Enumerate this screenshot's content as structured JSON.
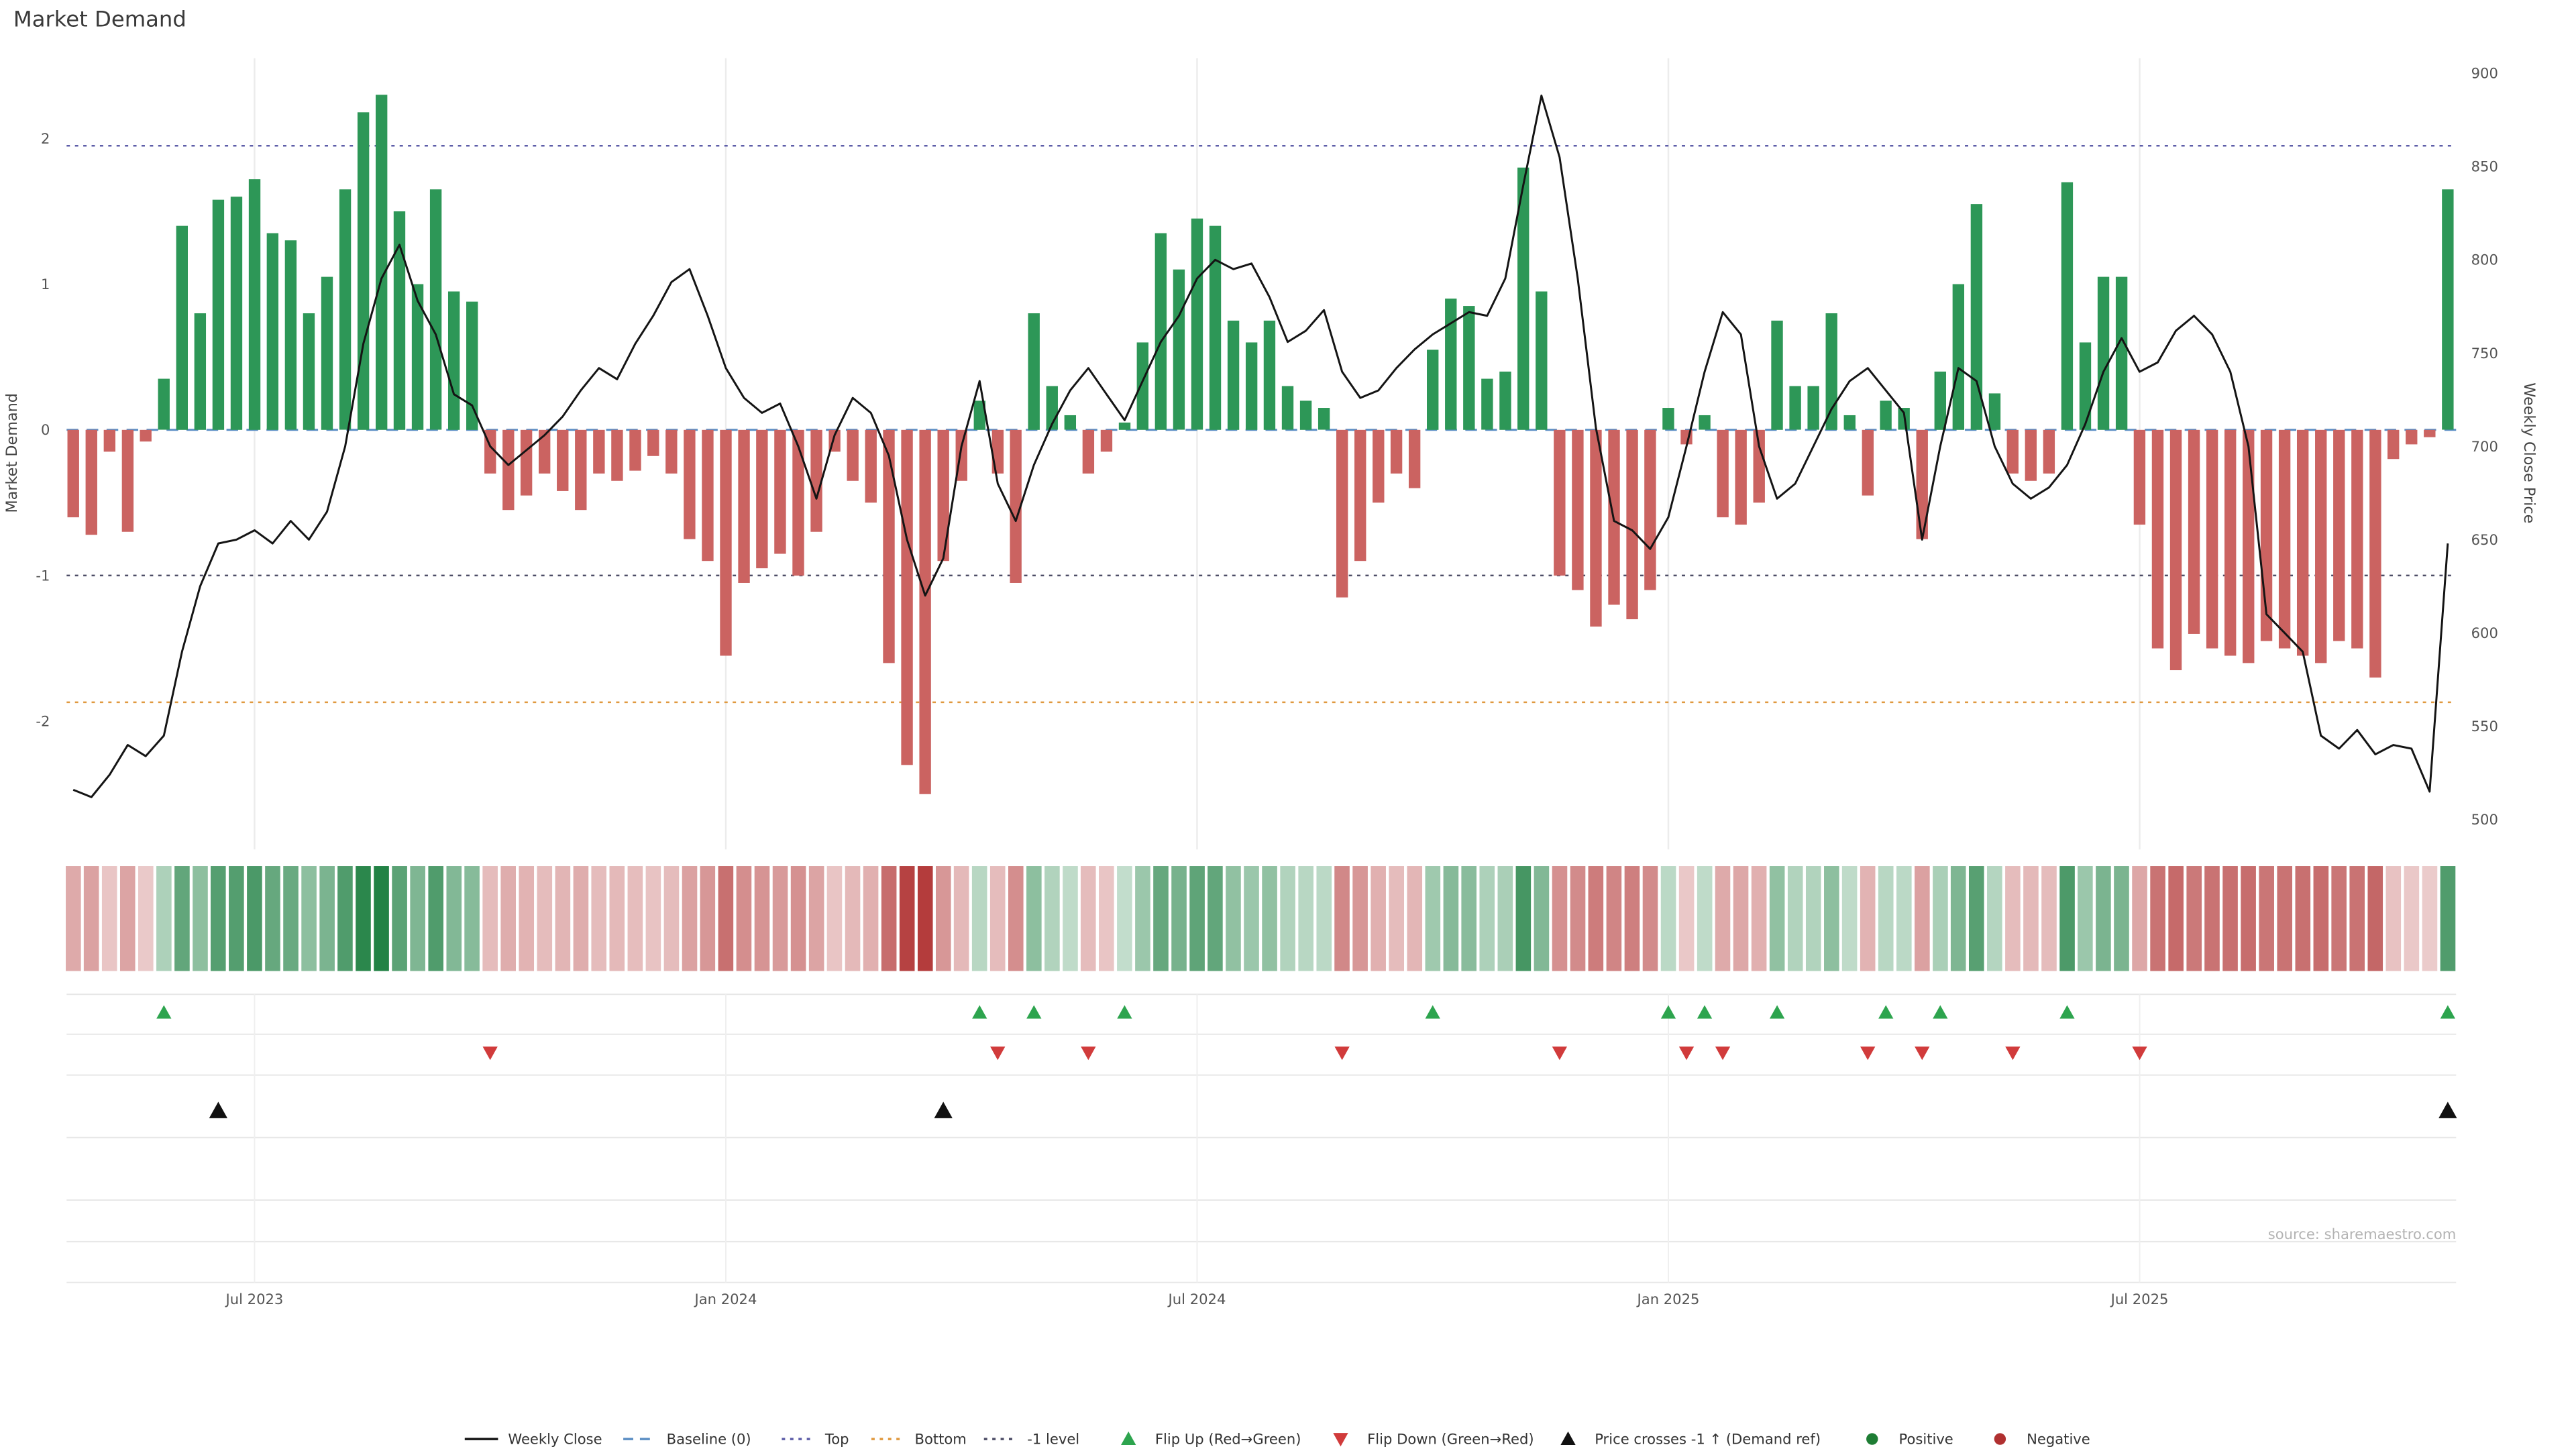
{
  "title": "Market Demand",
  "source": "source: sharemaestro.com",
  "axes": {
    "left_label": "Market Demand",
    "right_label": "Weekly Close Price",
    "left_ticks": [
      2,
      1,
      0,
      -1,
      -2
    ],
    "right_ticks": [
      900,
      850,
      800,
      750,
      700,
      650,
      600,
      550,
      500
    ],
    "x_ticks": [
      {
        "label": "Jul 2023",
        "index": 10
      },
      {
        "label": "Jan 2024",
        "index": 36
      },
      {
        "label": "Jul 2024",
        "index": 62
      },
      {
        "label": "Jan 2025",
        "index": 88
      },
      {
        "label": "Jul 2025",
        "index": 114
      }
    ]
  },
  "colors": {
    "bar_positive": "#2d9757",
    "bar_negative": "#cb6361",
    "line": "#141414",
    "baseline": "#5b8ec4",
    "top_line": "#5d5da8",
    "bottom_line": "#e0993f",
    "minus1_line": "#4d4d66",
    "flip_up": "#2da44e",
    "flip_down": "#d13b3b",
    "price_cross": "#111111",
    "heat_positive": "#1b7e3f",
    "heat_negative": "#b43c3c",
    "positive_dot": "#1e7d34",
    "negative_dot": "#b03030",
    "grid": "#ececec"
  },
  "chart_data": {
    "type": "bar",
    "subtype": "bar+line dual axis with heat strip and event markers",
    "title": "Market Demand",
    "xlabel": "",
    "ylabel_left": "Market Demand",
    "ylabel_right": "Weekly Close Price",
    "start_date": "2023-04-24",
    "frequency": "weekly",
    "demand_ylim": [
      -2.88,
      2.55
    ],
    "price_ylim": [
      484,
      908
    ],
    "reference_lines": {
      "baseline": 0,
      "top": 1.95,
      "bottom": -1.87,
      "minus1": -1
    },
    "legend_position": "bottom",
    "grid": "vertical-only",
    "series": [
      {
        "name": "Market Demand",
        "type": "bar",
        "values": [
          -0.6,
          -0.72,
          -0.15,
          -0.7,
          -0.08,
          0.35,
          1.4,
          0.8,
          1.58,
          1.6,
          1.72,
          1.35,
          1.3,
          0.8,
          1.05,
          1.65,
          2.18,
          2.3,
          1.5,
          1.0,
          1.65,
          0.95,
          0.88,
          -0.3,
          -0.55,
          -0.45,
          -0.3,
          -0.42,
          -0.55,
          -0.3,
          -0.35,
          -0.28,
          -0.18,
          -0.3,
          -0.75,
          -0.9,
          -1.55,
          -1.05,
          -0.95,
          -0.85,
          -1.0,
          -0.7,
          -0.15,
          -0.35,
          -0.5,
          -1.6,
          -2.3,
          -2.5,
          -0.9,
          -0.35,
          0.2,
          -0.3,
          -1.05,
          0.8,
          0.3,
          0.1,
          -0.3,
          -0.15,
          0.05,
          0.6,
          1.35,
          1.1,
          1.45,
          1.4,
          0.75,
          0.6,
          0.75,
          0.3,
          0.2,
          0.15,
          -1.15,
          -0.9,
          -0.5,
          -0.3,
          -0.4,
          0.55,
          0.9,
          0.85,
          0.35,
          0.4,
          1.8,
          0.95,
          -1.0,
          -1.1,
          -1.35,
          -1.2,
          -1.3,
          -1.1,
          0.15,
          -0.1,
          0.1,
          -0.6,
          -0.65,
          -0.5,
          0.75,
          0.3,
          0.3,
          0.8,
          0.1,
          -0.45,
          0.2,
          0.15,
          -0.75,
          0.4,
          1.0,
          1.55,
          0.25,
          -0.3,
          -0.35,
          -0.3,
          1.7,
          0.6,
          1.05,
          1.05,
          -0.65,
          -1.5,
          -1.65,
          -1.4,
          -1.5,
          -1.55,
          -1.6,
          -1.45,
          -1.5,
          -1.55,
          -1.6,
          -1.45,
          -1.5,
          -1.7,
          -0.2,
          -0.1,
          -0.05,
          1.65
        ]
      },
      {
        "name": "Weekly Close",
        "type": "line",
        "values": [
          516,
          512,
          524,
          540,
          534,
          545,
          590,
          625,
          648,
          650,
          655,
          648,
          660,
          650,
          665,
          700,
          755,
          790,
          808,
          778,
          760,
          728,
          722,
          700,
          690,
          698,
          706,
          716,
          730,
          742,
          736,
          755,
          770,
          788,
          795,
          770,
          742,
          726,
          718,
          723,
          700,
          672,
          706,
          726,
          718,
          695,
          650,
          620,
          640,
          700,
          735,
          680,
          660,
          690,
          712,
          730,
          742,
          728,
          714,
          735,
          756,
          770,
          790,
          800,
          795,
          798,
          780,
          756,
          762,
          773,
          740,
          726,
          730,
          742,
          752,
          760,
          766,
          772,
          770,
          790,
          840,
          888,
          855,
          790,
          710,
          660,
          655,
          645,
          662,
          700,
          740,
          772,
          760,
          700,
          672,
          680,
          700,
          720,
          735,
          742,
          730,
          718,
          650,
          700,
          742,
          735,
          700,
          680,
          672,
          678,
          690,
          712,
          740,
          758,
          740,
          745,
          762,
          770,
          760,
          740,
          700,
          610,
          600,
          590,
          545,
          538,
          548,
          535,
          540,
          538,
          515,
          648
        ]
      }
    ],
    "markers": {
      "flip_up_rule": "bar flips negative to positive",
      "flip_down_rule": "bar flips positive to negative",
      "price_cross_rule": "price crosses upward through the price level aligned with demand -1"
    }
  },
  "legend": {
    "items": [
      {
        "label": "Weekly Close",
        "glyph": "line",
        "color": "#141414"
      },
      {
        "label": "Baseline (0)",
        "glyph": "dash",
        "color": "#5b8ec4"
      },
      {
        "label": "Top",
        "glyph": "dot-line",
        "color": "#5d5da8"
      },
      {
        "label": "Bottom",
        "glyph": "dot-line",
        "color": "#e0993f"
      },
      {
        "label": "-1 level",
        "glyph": "dot-line",
        "color": "#4d4d66"
      },
      {
        "label": "Flip Up (Red→Green)",
        "glyph": "tri-up",
        "color": "#2da44e"
      },
      {
        "label": "Flip Down (Green→Red)",
        "glyph": "tri-down",
        "color": "#d13b3b"
      },
      {
        "label": "Price crosses -1 ↑ (Demand ref)",
        "glyph": "tri-up",
        "color": "#111111"
      },
      {
        "label": "Positive",
        "glyph": "dot",
        "color": "#1e7d34"
      },
      {
        "label": "Negative",
        "glyph": "dot",
        "color": "#b03030"
      }
    ]
  }
}
